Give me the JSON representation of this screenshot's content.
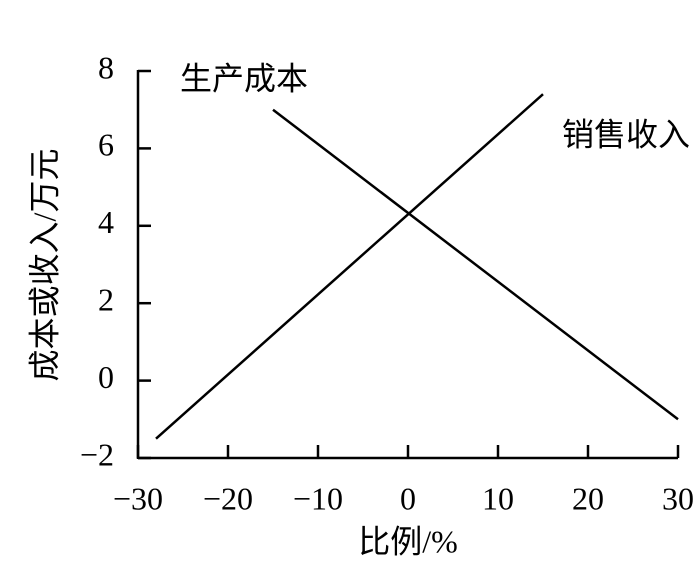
{
  "chart_data": {
    "type": "line",
    "xlabel": "比例/%",
    "ylabel": "成本或收入/万元",
    "xlim": [
      -30,
      30
    ],
    "ylim": [
      -2,
      8
    ],
    "xticks": [
      {
        "value": -30,
        "label": "−30"
      },
      {
        "value": -20,
        "label": "−20"
      },
      {
        "value": -10,
        "label": "−10"
      },
      0,
      10,
      20,
      30
    ],
    "yticks": [
      {
        "value": -2,
        "label": "−2"
      },
      0,
      2,
      4,
      6,
      8
    ],
    "series": [
      {
        "name": "生产成本",
        "color": "#000000",
        "x": [
          -15,
          30
        ],
        "values": [
          7,
          -1
        ]
      },
      {
        "name": "销售收入",
        "color": "#000000",
        "x": [
          -28,
          15
        ],
        "values": [
          -1.5,
          7.4
        ]
      }
    ]
  }
}
